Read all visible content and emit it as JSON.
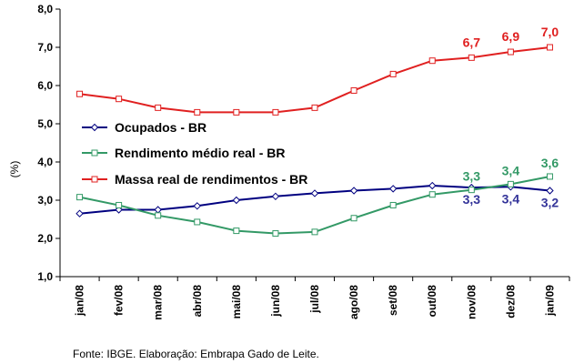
{
  "chart_data": {
    "type": "line",
    "categories": [
      "jan/08",
      "fev/08",
      "mar/08",
      "abr/08",
      "mai/08",
      "jun/08",
      "jul/08",
      "ago/08",
      "set/08",
      "out/08",
      "nov/08",
      "dez/08",
      "jan/09"
    ],
    "ylabel": "(%)",
    "ylim": [
      1.0,
      8.0
    ],
    "yticks": [
      "1,0",
      "2,0",
      "3,0",
      "4,0",
      "5,0",
      "6,0",
      "7,0",
      "8,0"
    ],
    "grid": false,
    "legend_position": "left-center",
    "source": "Fonte: IBGE. Elaboração: Embrapa Gado de Leite.",
    "series": [
      {
        "name": "Ocupados - BR",
        "color": "#000080",
        "marker": "diamond",
        "values": [
          2.65,
          2.75,
          2.75,
          2.85,
          3.0,
          3.1,
          3.18,
          3.25,
          3.3,
          3.38,
          3.33,
          3.35,
          3.25
        ],
        "labels": {
          "10": "3,3",
          "11": "3,4",
          "12": "3,2"
        },
        "label_color": "#333399"
      },
      {
        "name": "Rendimento médio real - BR",
        "color": "#339966",
        "marker": "square",
        "values": [
          3.08,
          2.87,
          2.6,
          2.43,
          2.2,
          2.13,
          2.17,
          2.53,
          2.87,
          3.15,
          3.27,
          3.42,
          3.62
        ],
        "labels": {
          "10": "3,3",
          "11": "3,4",
          "12": "3,6"
        },
        "label_color": "#339966"
      },
      {
        "name": "Massa real de rendimentos - BR",
        "color": "#e02020",
        "marker": "square",
        "values": [
          5.78,
          5.65,
          5.42,
          5.3,
          5.3,
          5.3,
          5.42,
          5.87,
          6.3,
          6.65,
          6.73,
          6.88,
          7.0
        ],
        "labels": {
          "10": "6,7",
          "11": "6,9",
          "12": "7,0"
        },
        "label_color": "#e02020"
      }
    ]
  }
}
